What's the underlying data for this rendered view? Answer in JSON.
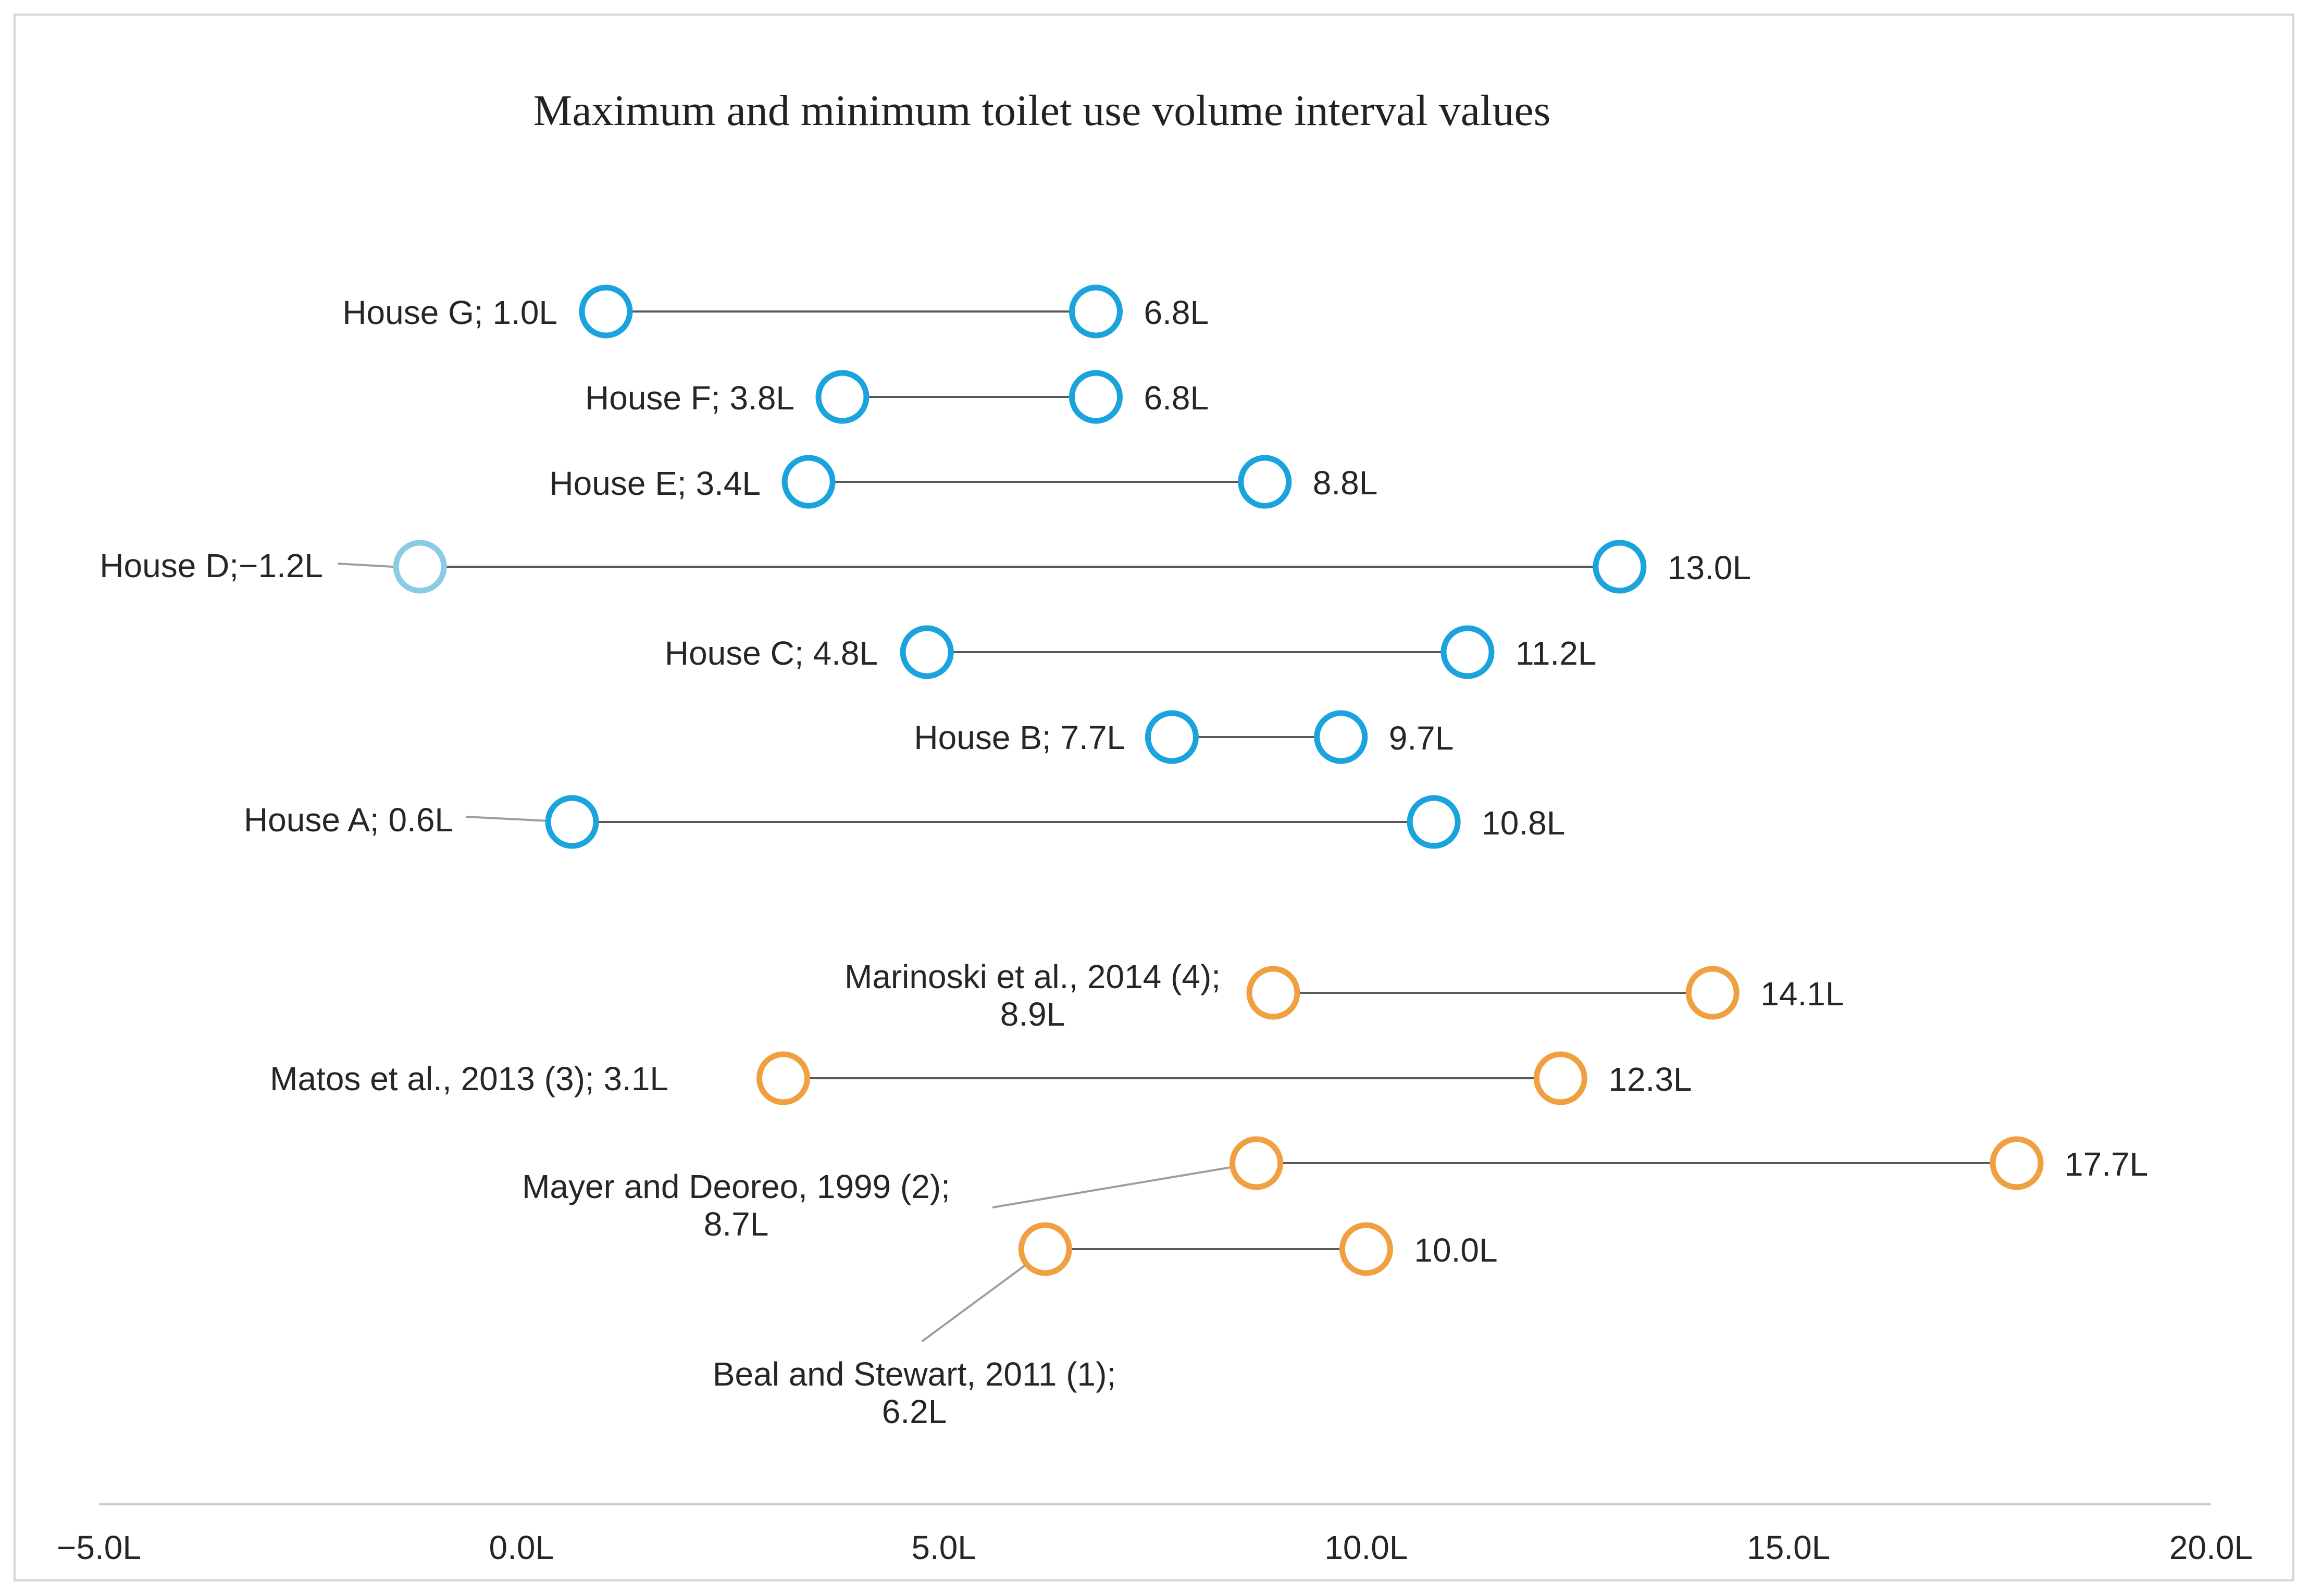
{
  "chart_data": {
    "type": "dumbbell",
    "title": "Maximum and minimum toilet use volume interval values",
    "xlabel": "",
    "ylabel": "",
    "xlim": [
      -5.0,
      20.0
    ],
    "x_ticks": [
      -5.0,
      0.0,
      5.0,
      10.0,
      15.0,
      20.0
    ],
    "x_tick_labels": [
      "−5.0L",
      "0.0L",
      "5.0L",
      "10.0L",
      "15.0L",
      "20.0L"
    ],
    "grid": false,
    "colors": {
      "house": "#1aa3dc",
      "house_light": "#8ccbe6",
      "literature": "#f0a040",
      "line": "#595959",
      "leader": "#9e9e9e",
      "axis": "#cccccc"
    },
    "series": [
      {
        "name": "House G",
        "group": "house",
        "min": 1.0,
        "max": 6.8,
        "min_label": [
          "House G; 1.0L"
        ],
        "max_label": "6.8L"
      },
      {
        "name": "House F",
        "group": "house",
        "min": 3.8,
        "max": 6.8,
        "min_label": [
          "House F; 3.8L"
        ],
        "max_label": "6.8L"
      },
      {
        "name": "House E",
        "group": "house",
        "min": 3.4,
        "max": 8.8,
        "min_label": [
          "House E; 3.4L"
        ],
        "max_label": "8.8L"
      },
      {
        "name": "House D",
        "group": "house",
        "min": -1.2,
        "max": 13.0,
        "min_label": [
          "House D;−1.2L"
        ],
        "max_label": "13.0L"
      },
      {
        "name": "House C",
        "group": "house",
        "min": 4.8,
        "max": 11.2,
        "min_label": [
          "House C; 4.8L"
        ],
        "max_label": "11.2L"
      },
      {
        "name": "House B",
        "group": "house",
        "min": 7.7,
        "max": 9.7,
        "min_label": [
          "House B; 7.7L"
        ],
        "max_label": "9.7L"
      },
      {
        "name": "House A",
        "group": "house",
        "min": 0.6,
        "max": 10.8,
        "min_label": [
          "House A; 0.6L"
        ],
        "max_label": "10.8L"
      },
      {
        "name": "Marinoski et al., 2014 (4)",
        "group": "literature",
        "min": 8.9,
        "max": 14.1,
        "min_label": [
          "Marinoski et al., 2014 (4);",
          "8.9L"
        ],
        "max_label": "14.1L"
      },
      {
        "name": "Matos et al., 2013 (3)",
        "group": "literature",
        "min": 3.1,
        "max": 12.3,
        "min_label": [
          "Matos et al., 2013 (3); 3.1L"
        ],
        "max_label": "12.3L"
      },
      {
        "name": "Mayer and Deoreo, 1999 (2)",
        "group": "literature",
        "min": 8.7,
        "max": 17.7,
        "min_label": [
          "Mayer and Deoreo, 1999 (2);",
          "8.7L"
        ],
        "max_label": "17.7L"
      },
      {
        "name": "Beal and Stewart, 2011 (1)",
        "group": "literature",
        "min": 6.2,
        "max": 10.0,
        "min_label": [
          "Beal and Stewart, 2011 (1);",
          "6.2L"
        ],
        "max_label": "10.0L"
      }
    ]
  }
}
